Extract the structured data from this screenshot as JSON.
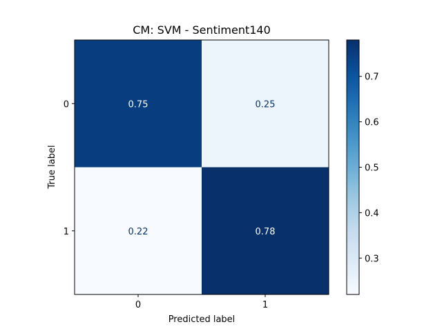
{
  "chart_data": {
    "type": "heatmap",
    "title": "CM: SVM - Sentiment140",
    "xlabel": "Predicted label",
    "ylabel": "True label",
    "x_categories": [
      "0",
      "1"
    ],
    "y_categories": [
      "0",
      "1"
    ],
    "values": [
      [
        0.75,
        0.25
      ],
      [
        0.22,
        0.78
      ]
    ],
    "colormap": "Blues",
    "color_range": [
      0.22,
      0.78
    ],
    "colorbar_ticks": [
      "0.3",
      "0.4",
      "0.5",
      "0.6",
      "0.7"
    ],
    "colorbar_tick_values": [
      0.3,
      0.4,
      0.5,
      0.6,
      0.7
    ],
    "grid": false
  }
}
